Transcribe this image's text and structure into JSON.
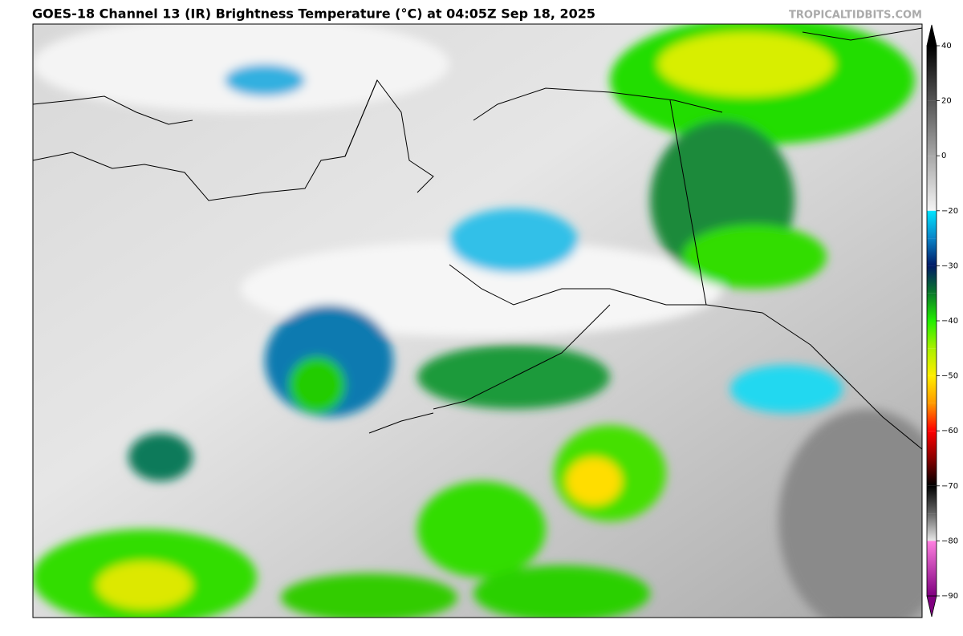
{
  "header": {
    "title": "GOES-18 Channel 13 (IR) Brightness Temperature (°C) at 04:05Z Sep 18, 2025",
    "watermark": "TROPICALTIDBITS.COM"
  },
  "colorbar": {
    "ticks": [
      40,
      20,
      0,
      {
        "value": -20,
        "label": "−20"
      },
      {
        "value": -30,
        "label": "−30"
      },
      {
        "value": -40,
        "label": "−40"
      },
      {
        "value": -50,
        "label": "−50"
      },
      {
        "value": -60,
        "label": "−60"
      },
      {
        "value": -70,
        "label": "−70"
      },
      {
        "value": -80,
        "label": "−80"
      },
      {
        "value": -90,
        "label": "−90"
      }
    ],
    "colormap": [
      {
        "value": 40,
        "color": "#000000"
      },
      {
        "value": 20,
        "color": "#555555"
      },
      {
        "value": 0,
        "color": "#a8a8a8"
      },
      {
        "value": -20,
        "color": "#f4f4f4"
      },
      {
        "value": -20,
        "color": "#00e5ff"
      },
      {
        "value": -25,
        "color": "#0a84c8"
      },
      {
        "value": -30,
        "color": "#001a66"
      },
      {
        "value": -35,
        "color": "#0a7a2a"
      },
      {
        "value": -40,
        "color": "#22ee00"
      },
      {
        "value": -45,
        "color": "#aaf000"
      },
      {
        "value": -50,
        "color": "#ffee00"
      },
      {
        "value": -55,
        "color": "#ff9a00"
      },
      {
        "value": -60,
        "color": "#ff0000"
      },
      {
        "value": -65,
        "color": "#8a0000"
      },
      {
        "value": -70,
        "color": "#000000"
      },
      {
        "value": -75,
        "color": "#666666"
      },
      {
        "value": -80,
        "color": "#e8e8e8"
      },
      {
        "value": -80,
        "color": "#ff80e0"
      },
      {
        "value": -90,
        "color": "#800080"
      }
    ]
  }
}
